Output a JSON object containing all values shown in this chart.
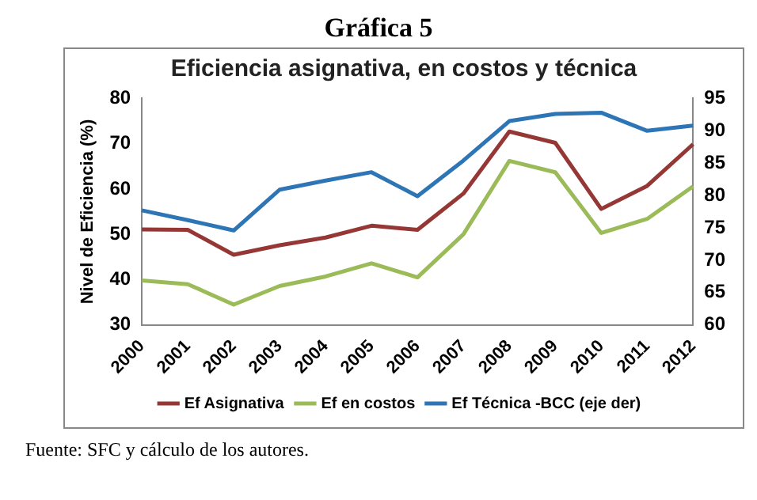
{
  "chart_data": {
    "type": "line",
    "title": "Gráfica 5",
    "subtitle": "Eficiencia asignativa, en costos y técnica",
    "ylabel": "Nivel de Eficiencia (%)",
    "categories": [
      "2000",
      "2001",
      "2002",
      "2003",
      "2004",
      "2005",
      "2006",
      "2007",
      "2008",
      "2009",
      "2010",
      "2011",
      "2012"
    ],
    "series": [
      {
        "name": "Ef Asignativa",
        "color": "#953735",
        "values": [
          51.1,
          51,
          45.5,
          47.6,
          49.3,
          51.9,
          51,
          59,
          72.7,
          70.2,
          55.6,
          60.7,
          69.9
        ]
      },
      {
        "name": "Ef en costos",
        "color": "#9bbb59",
        "values": [
          39.8,
          39,
          34.5,
          38.6,
          40.7,
          43.6,
          40.5,
          50,
          66.2,
          63.7,
          50.3,
          53.4,
          60.6
        ]
      },
      {
        "name": "Ef Técnica -BCC (eje der)",
        "color": "#2e75b6",
        "axis": "y2",
        "values": [
          77.7,
          76.2,
          74.6,
          80.9,
          82.3,
          83.6,
          79.9,
          85.4,
          91.5,
          92.6,
          92.8,
          90,
          90.8
        ]
      }
    ],
    "ylim": [
      30,
      80
    ],
    "yticks": [
      30,
      40,
      50,
      60,
      70,
      80
    ],
    "y2lim": [
      60,
      95
    ],
    "y2ticks": [
      60,
      65,
      70,
      75,
      80,
      85,
      90,
      95
    ],
    "grid": false,
    "legend": "bottom",
    "marker": "none",
    "line_style": "solid",
    "annotations": [
      "Fuente: SFC y cálculo de los autores."
    ]
  }
}
